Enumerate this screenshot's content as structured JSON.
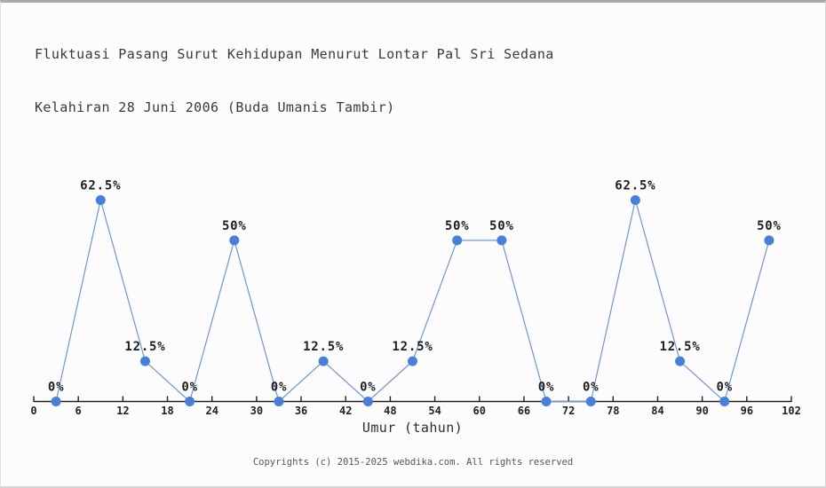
{
  "title": {
    "line1": "Fluktuasi Pasang Surut Kehidupan Menurut Lontar Pal Sri Sedana",
    "line2": "Kelahiran 28 Juni 2006 (Buda Umanis Tambir)"
  },
  "footer": {
    "copyright": "Copyrights (c) 2015-2025 webdika.com. All rights reserved"
  },
  "chart_data": {
    "type": "line",
    "title": "Fluktuasi Pasang Surut Kehidupan Menurut Lontar Pal Sri Sedana Kelahiran 28 Juni 2006 (Buda Umanis Tambir)",
    "xlabel": "Umur (tahun)",
    "ylabel": "",
    "x": [
      3,
      9,
      15,
      21,
      27,
      33,
      39,
      45,
      51,
      57,
      63,
      69,
      75,
      81,
      87,
      93,
      99
    ],
    "values": [
      0,
      62.5,
      12.5,
      0,
      50,
      0,
      12.5,
      0,
      12.5,
      50,
      50,
      0,
      0,
      62.5,
      12.5,
      0,
      50
    ],
    "point_labels": [
      "0%",
      "62.5%",
      "12.5%",
      "0%",
      "50%",
      "0%",
      "12.5%",
      "0%",
      "12.5%",
      "50%",
      "50%",
      "0%",
      "0%",
      "62.5%",
      "12.5%",
      "0%",
      "50%"
    ],
    "x_ticks": [
      0,
      6,
      12,
      18,
      24,
      30,
      36,
      42,
      48,
      54,
      60,
      66,
      72,
      78,
      84,
      90,
      96,
      102
    ],
    "xlim": [
      0,
      102
    ],
    "ylim": [
      0,
      100
    ],
    "grid": false,
    "legend": "none",
    "y_axis": "hidden",
    "colors": {
      "line": "#6d95e0",
      "marker": "#477fe0",
      "axis": "#1e1e1e",
      "point_label": "#1e1e1e",
      "tick_label": "#222222"
    }
  }
}
